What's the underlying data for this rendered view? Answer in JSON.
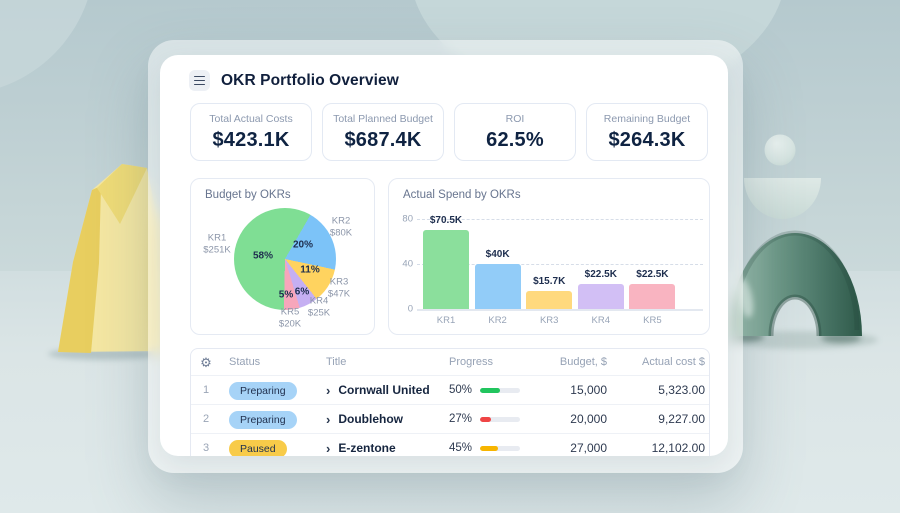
{
  "header": {
    "title": "OKR Portfolio Overview"
  },
  "stats": [
    {
      "label": "Total Actual Costs",
      "value": "$423.1K"
    },
    {
      "label": "Total Planned Budget",
      "value": "$687.4K"
    },
    {
      "label": "ROI",
      "value": "62.5%"
    },
    {
      "label": "Remaining Budget",
      "value": "$264.3K"
    }
  ],
  "chart_data": [
    {
      "type": "pie",
      "title": "Budget by OKRs",
      "labels": [
        "KR1",
        "KR2",
        "KR3",
        "KR4",
        "KR5"
      ],
      "amounts": [
        "$251K",
        "$80K",
        "$47K",
        "$25K",
        "$20K"
      ],
      "percents": [
        58,
        20,
        11,
        6,
        5
      ],
      "colors": [
        "#7FDE94",
        "#7CC3F8",
        "#FFD35F",
        "#C5AFF2",
        "#F7A6BB"
      ],
      "start_angle_deg": 30,
      "clockwise_order": [
        "KR2",
        "KR3",
        "KR4",
        "KR5",
        "KR1"
      ],
      "legend_position": "around"
    },
    {
      "type": "bar",
      "title": "Actual Spend by OKRs",
      "categories": [
        "KR1",
        "KR2",
        "KR3",
        "KR4",
        "KR5"
      ],
      "values": [
        70.5,
        40,
        15.7,
        22.5,
        22.5
      ],
      "value_labels": [
        "$70.5K",
        "$40K",
        "$15.7K",
        "$22.5K",
        "$22.5K"
      ],
      "colors": [
        "#8BDF9C",
        "#92CCF8",
        "#FFD97E",
        "#D2BFF5",
        "#F9B4C1"
      ],
      "xlabel": "",
      "ylabel": "",
      "yticks": [
        0,
        40,
        80
      ],
      "ylim": [
        0,
        80
      ],
      "grid": "dashed-horizontal"
    }
  ],
  "table": {
    "columns": [
      "Status",
      "Title",
      "Progress",
      "Budget, $",
      "Actual cost $"
    ],
    "rows": [
      {
        "num": "1",
        "status": "Preparing",
        "status_color": "#A6D3F7",
        "title": "Cornwall United",
        "progress": "50%",
        "progress_value": 50,
        "progress_color": "#21C55E",
        "budget": "15,000",
        "actual_cost": "5,323.00"
      },
      {
        "num": "2",
        "status": "Preparing",
        "status_color": "#A6D3F7",
        "title": "Doublehow",
        "progress": "27%",
        "progress_value": 27,
        "progress_color": "#EF4545",
        "budget": "20,000",
        "actual_cost": "9,227.00"
      },
      {
        "num": "3",
        "status": "Paused",
        "status_color": "#F8CB49",
        "title": "E-zentone",
        "progress": "45%",
        "progress_value": 45,
        "progress_color": "#F7B500",
        "budget": "27,000",
        "actual_cost": "12,102.00"
      }
    ]
  },
  "icons": {
    "menu": "hamburger-icon",
    "table_settings": "gear-icon",
    "gear_glyph": "⚙",
    "row_expand": "chevron-right-icon",
    "chevron_glyph": "›"
  },
  "accent_colors": {
    "text_dark_navy": "#101F3C",
    "text_muted": "#8C99AF",
    "card_border": "#E5EAF3",
    "track_gray": "#E8EBF1",
    "badge_preparing_bg": "#A6D3F7",
    "badge_paused_bg": "#F8CB49"
  }
}
